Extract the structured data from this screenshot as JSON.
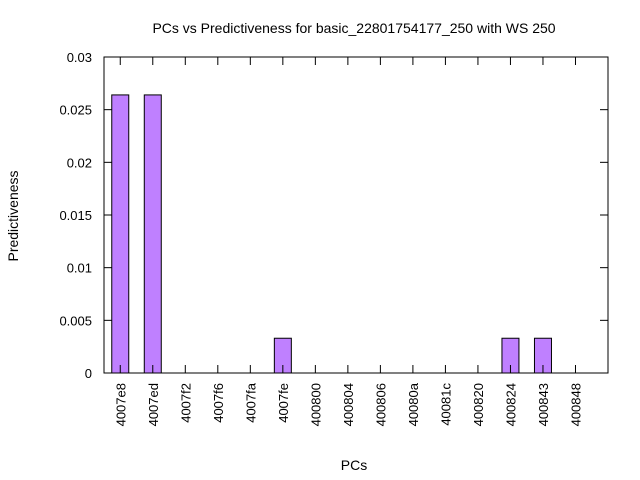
{
  "chart_data": {
    "type": "bar",
    "title": "PCs vs Predictiveness for basic_22801754177_250 with WS 250",
    "xlabel": "PCs",
    "ylabel": "Predictiveness",
    "ylim": [
      0,
      0.03
    ],
    "yticks": [
      "0",
      "0.005",
      "0.01",
      "0.015",
      "0.02",
      "0.025",
      "0.03"
    ],
    "categories": [
      "4007e8",
      "4007ed",
      "4007f2",
      "4007f6",
      "4007fa",
      "4007fe",
      "400800",
      "400804",
      "400806",
      "40080a",
      "40081c",
      "400820",
      "400824",
      "400843",
      "400848"
    ],
    "values": [
      0.0264,
      0.0264,
      0,
      0,
      0,
      0.0033,
      0,
      0,
      0,
      0,
      0,
      0,
      0.0033,
      0.0033,
      0
    ],
    "bar_color": "#bf80ff",
    "grid": false,
    "legend": false
  }
}
